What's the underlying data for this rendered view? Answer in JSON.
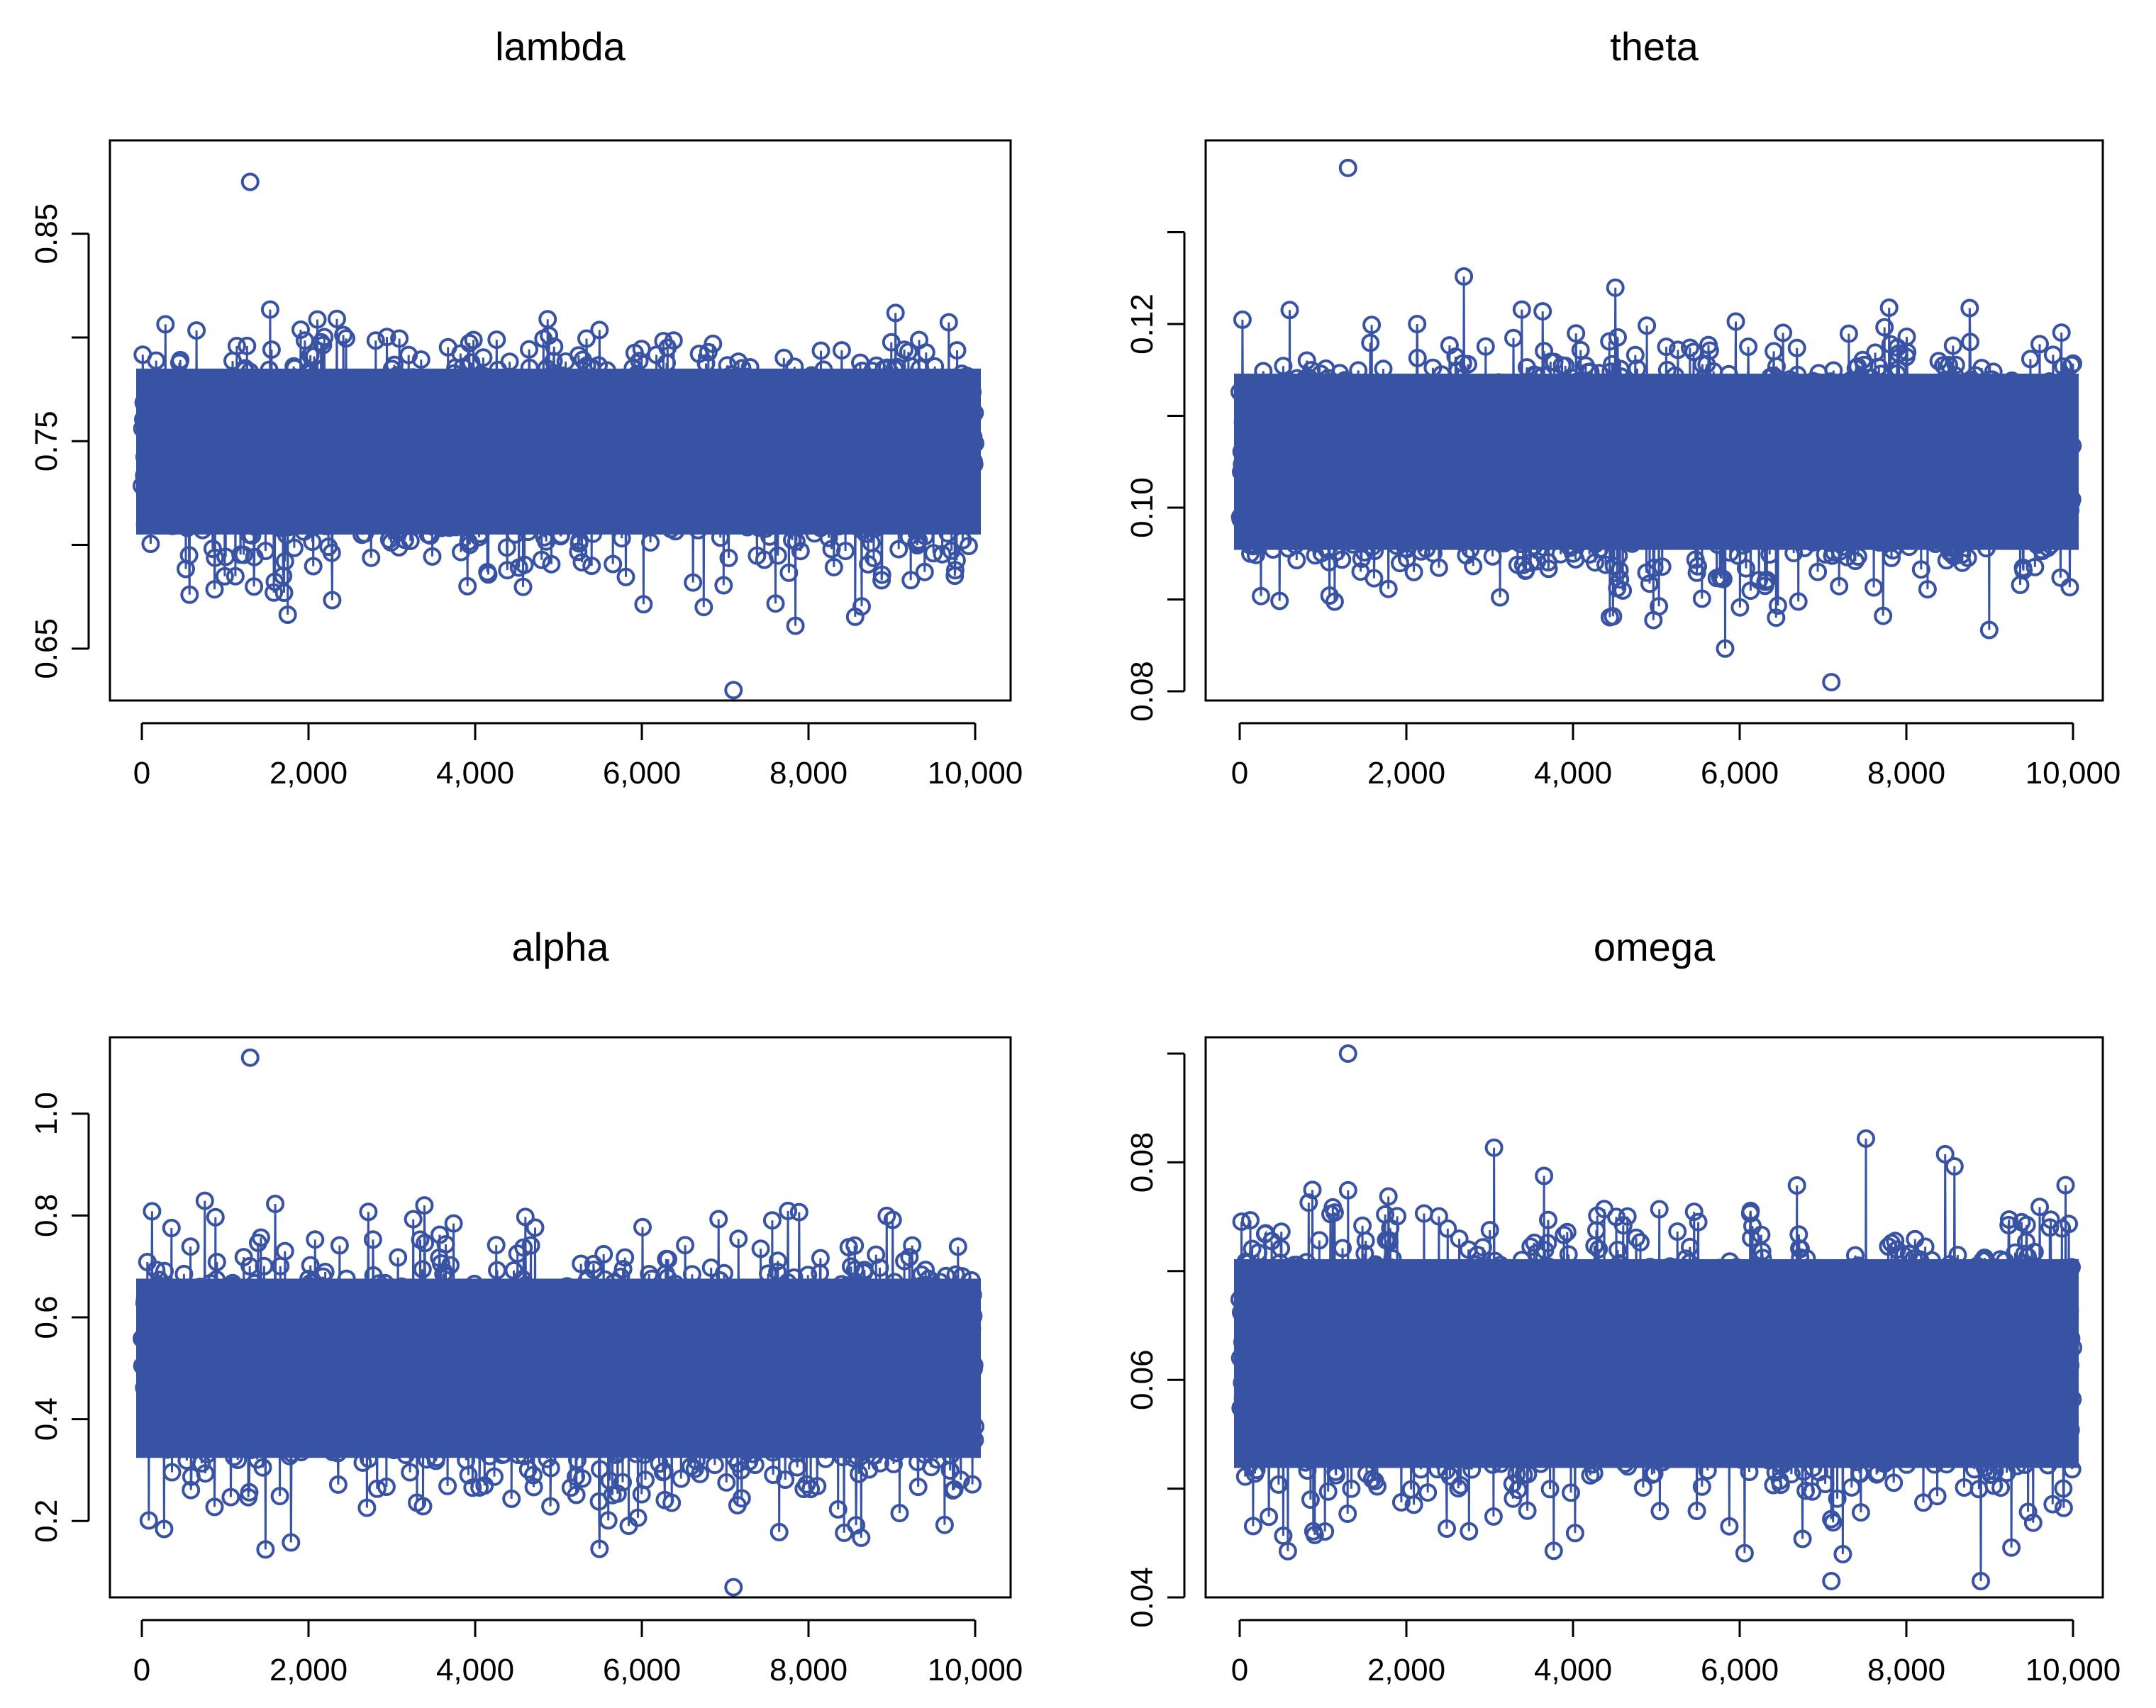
{
  "figure_description": "MCMC trace plots, 2x2 panels",
  "series_color": "#3953a4",
  "chart_data": [
    {
      "type": "scatter",
      "title": "lambda",
      "xlabel": "",
      "ylabel": "",
      "xlim": [
        0,
        10000
      ],
      "ylim": [
        0.625,
        0.895
      ],
      "xticks": [
        0,
        2000,
        4000,
        6000,
        8000,
        10000
      ],
      "xtick_labels": [
        "0",
        "2,000",
        "4,000",
        "6,000",
        "8,000",
        "10,000"
      ],
      "yticks": [
        0.65,
        0.7,
        0.75,
        0.8,
        0.85
      ],
      "ytick_labels": [
        "0.65",
        "",
        "0.75",
        "",
        "0.85"
      ],
      "n_samples": 10000,
      "center": 0.745,
      "sd": 0.025,
      "extremes": {
        "min": 0.63,
        "max": 0.875
      }
    },
    {
      "type": "scatter",
      "title": "theta",
      "xlabel": "",
      "ylabel": "",
      "xlim": [
        0,
        10000
      ],
      "ylim": [
        0.079,
        0.14
      ],
      "xticks": [
        0,
        2000,
        4000,
        6000,
        8000,
        10000
      ],
      "xtick_labels": [
        "0",
        "2,000",
        "4,000",
        "6,000",
        "8,000",
        "10,000"
      ],
      "yticks": [
        0.08,
        0.09,
        0.1,
        0.11,
        0.12,
        0.13
      ],
      "ytick_labels": [
        "0.08",
        "",
        "0.10",
        "",
        "0.12",
        ""
      ],
      "n_samples": 10000,
      "center": 0.105,
      "sd": 0.006,
      "extremes": {
        "min": 0.081,
        "max": 0.137
      }
    },
    {
      "type": "scatter",
      "title": "alpha",
      "xlabel": "",
      "ylabel": "",
      "xlim": [
        0,
        10000
      ],
      "ylim": [
        0.05,
        1.15
      ],
      "xticks": [
        0,
        2000,
        4000,
        6000,
        8000,
        10000
      ],
      "xtick_labels": [
        "0",
        "2,000",
        "4,000",
        "6,000",
        "8,000",
        "10,000"
      ],
      "yticks": [
        0.2,
        0.4,
        0.6,
        0.8,
        1.0
      ],
      "ytick_labels": [
        "0.2",
        "0.4",
        "0.6",
        "0.8",
        "1.0"
      ],
      "n_samples": 10000,
      "center": 0.5,
      "sd": 0.11,
      "extremes": {
        "min": 0.07,
        "max": 1.11
      }
    },
    {
      "type": "scatter",
      "title": "omega",
      "xlabel": "",
      "ylabel": "",
      "xlim": [
        0,
        10000
      ],
      "ylim": [
        0.04,
        0.0915
      ],
      "xticks": [
        0,
        2000,
        4000,
        6000,
        8000,
        10000
      ],
      "xtick_labels": [
        "0",
        "2,000",
        "4,000",
        "6,000",
        "8,000",
        "10,000"
      ],
      "yticks": [
        0.04,
        0.05,
        0.06,
        0.07,
        0.08,
        0.09
      ],
      "ytick_labels": [
        "0.04",
        "",
        "0.06",
        "",
        "0.08",
        ""
      ],
      "n_samples": 10000,
      "center": 0.0615,
      "sd": 0.006,
      "extremes": {
        "min": 0.0415,
        "max": 0.09
      }
    }
  ]
}
